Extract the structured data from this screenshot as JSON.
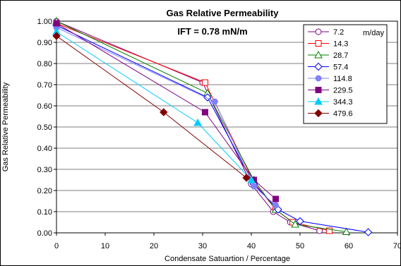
{
  "chart_data": {
    "type": "line",
    "title": "Gas Relative Permeability",
    "subtitle": "IFT = 0.78 mN/m",
    "xlabel": "Condensate Satuartion / Percentage",
    "ylabel": "Gas Relative Permeability",
    "xlim": [
      0,
      70
    ],
    "ylim": [
      0,
      1
    ],
    "xticks": [
      "0",
      "10",
      "20",
      "30",
      "40",
      "50",
      "60",
      "70"
    ],
    "yticks": [
      "0.00",
      "0.10",
      "0.20",
      "0.30",
      "0.40",
      "0.50",
      "0.60",
      "0.70",
      "0.80",
      "0.90",
      "1.00"
    ],
    "legend_position": "top-right",
    "legend_unit": "m/day",
    "series": [
      {
        "name": "7.2",
        "color": "#800080",
        "marker": "circle-open",
        "x": [
          0,
          30,
          40,
          44.5,
          48,
          54
        ],
        "y": [
          1.0,
          0.71,
          0.23,
          0.1,
          0.05,
          0.01
        ]
      },
      {
        "name": "14.3",
        "color": "#ff0000",
        "marker": "square-open",
        "x": [
          0,
          30.5,
          40.5,
          45,
          48.5,
          56
        ],
        "y": [
          0.99,
          0.71,
          0.24,
          0.11,
          0.05,
          0.01
        ]
      },
      {
        "name": "28.7",
        "color": "#008000",
        "marker": "triangle-open",
        "x": [
          0,
          31,
          40.5,
          45,
          49,
          59.5
        ],
        "y": [
          1.0,
          0.66,
          0.25,
          0.11,
          0.04,
          0.005
        ]
      },
      {
        "name": "57.4",
        "color": "#0000ff",
        "marker": "diamond-open",
        "x": [
          0,
          31,
          40.5,
          45.5,
          50,
          64
        ],
        "y": [
          0.98,
          0.64,
          0.23,
          0.11,
          0.055,
          0.003
        ]
      },
      {
        "name": "114.8",
        "color": "#8080ff",
        "marker": "circle-filled",
        "x": [
          0,
          32.5,
          40.5,
          45
        ],
        "y": [
          0.97,
          0.62,
          0.22,
          0.13
        ]
      },
      {
        "name": "229.5",
        "color": "#800080",
        "marker": "square-filled",
        "x": [
          0,
          30.5,
          40.5,
          45
        ],
        "y": [
          0.99,
          0.57,
          0.25,
          0.16
        ]
      },
      {
        "name": "344.3",
        "color": "#00ccff",
        "marker": "triangle-filled",
        "x": [
          0,
          29,
          40
        ],
        "y": [
          0.95,
          0.52,
          0.25
        ]
      },
      {
        "name": "479.6",
        "color": "#800000",
        "marker": "diamond-filled",
        "x": [
          0,
          22,
          39
        ],
        "y": [
          0.93,
          0.57,
          0.26
        ]
      }
    ]
  }
}
